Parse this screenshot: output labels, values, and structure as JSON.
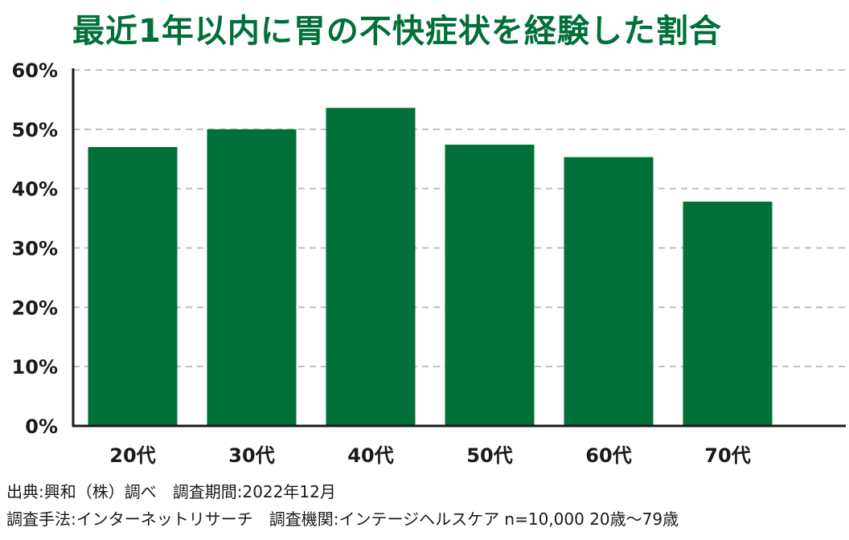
{
  "chart_data": {
    "type": "bar",
    "title": "最近1年以内に胃の不快症状を経験した割合",
    "categories": [
      "20代",
      "30代",
      "40代",
      "50代",
      "60代",
      "70代"
    ],
    "values": [
      47,
      50,
      53.6,
      47.4,
      45.3,
      37.8
    ],
    "ylim": [
      0,
      60
    ],
    "yticks": [
      0,
      10,
      20,
      30,
      40,
      50,
      60
    ],
    "ytick_labels": [
      "0%",
      "10%",
      "20%",
      "30%",
      "40%",
      "50%",
      "60%"
    ],
    "xlabel": "",
    "ylabel": "",
    "grid": true,
    "bar_color": "#006f38",
    "grid_color": "#bfbfbf"
  },
  "notes": {
    "source": "出典:興和（株）調べ　調査期間:2022年12月",
    "method": "調査手法:インターネットリサーチ　調査機関:インテージヘルスケア  n=10,000 20歳〜79歳"
  }
}
